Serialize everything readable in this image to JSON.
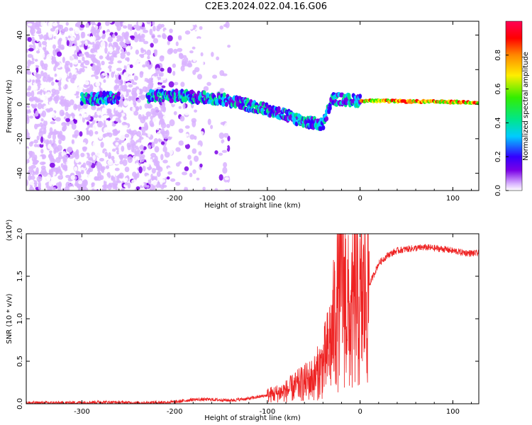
{
  "title": "C2E3.2024.022.04.16.G06",
  "colors": {
    "snr_line": "#ee2222",
    "colormap": [
      "#ffffff",
      "#d9b3ff",
      "#7a00e6",
      "#3300ff",
      "#00ccff",
      "#00e68a",
      "#33ee00",
      "#ffee00",
      "#ff8800",
      "#ff0000",
      "#ff0055"
    ]
  },
  "chart_data": [
    {
      "type": "heatmap",
      "xlabel": "Height of straight line (km)",
      "ylabel": "Frequency (Hz)",
      "xlim": [
        -360,
        128
      ],
      "ylim": [
        -50,
        48
      ],
      "xticks": [
        -300,
        -200,
        -100,
        0,
        100
      ],
      "yticks": [
        -40,
        -20,
        0,
        20,
        40
      ],
      "ridge": {
        "description_points": [
          {
            "x": -300,
            "y": 3
          },
          {
            "x": -200,
            "y": 5
          },
          {
            "x": -150,
            "y": 3
          },
          {
            "x": -100,
            "y": -3
          },
          {
            "x": -60,
            "y": -10
          },
          {
            "x": -40,
            "y": -12
          },
          {
            "x": -30,
            "y": 3
          },
          {
            "x": 0,
            "y": 2
          },
          {
            "x": 128,
            "y": 1
          }
        ]
      },
      "colorbar": {
        "label": "Normalized spectral amplitude",
        "range": [
          0,
          1
        ],
        "ticks": [
          "0.0",
          "0.2",
          "0.4",
          "0.6",
          "0.8"
        ]
      }
    },
    {
      "type": "line",
      "xlabel": "Height of straight line (km)",
      "ylabel": "SNR (10 * v/v)",
      "multiplier": "(x10⁴)",
      "xlim": [
        -360,
        128
      ],
      "ylim": [
        0,
        2.0
      ],
      "xticks": [
        -300,
        -200,
        -100,
        0,
        100
      ],
      "yticks": [
        "0.0",
        "0.5",
        "1.0",
        "1.5",
        "2.0"
      ],
      "series": [
        {
          "x": [
            -360,
            -320,
            -280,
            -240,
            -200,
            -180,
            -160,
            -140,
            -120,
            -100,
            -90,
            -80,
            -70,
            -60,
            -50,
            -40,
            -35,
            -30,
            -25,
            -20,
            -15,
            -10,
            -5,
            0,
            5,
            10,
            20,
            30,
            40,
            50,
            60,
            70,
            80,
            90,
            100,
            110,
            120,
            128
          ],
          "y": [
            0.01,
            0.01,
            0.02,
            0.01,
            0.02,
            0.05,
            0.05,
            0.04,
            0.06,
            0.1,
            0.12,
            0.15,
            0.2,
            0.25,
            0.3,
            0.45,
            0.6,
            0.8,
            1.2,
            1.6,
            1.2,
            0.9,
            1.3,
            1.1,
            1.3,
            1.4,
            1.65,
            1.75,
            1.8,
            1.82,
            1.83,
            1.84,
            1.83,
            1.82,
            1.8,
            1.78,
            1.77,
            1.77
          ]
        }
      ]
    }
  ]
}
